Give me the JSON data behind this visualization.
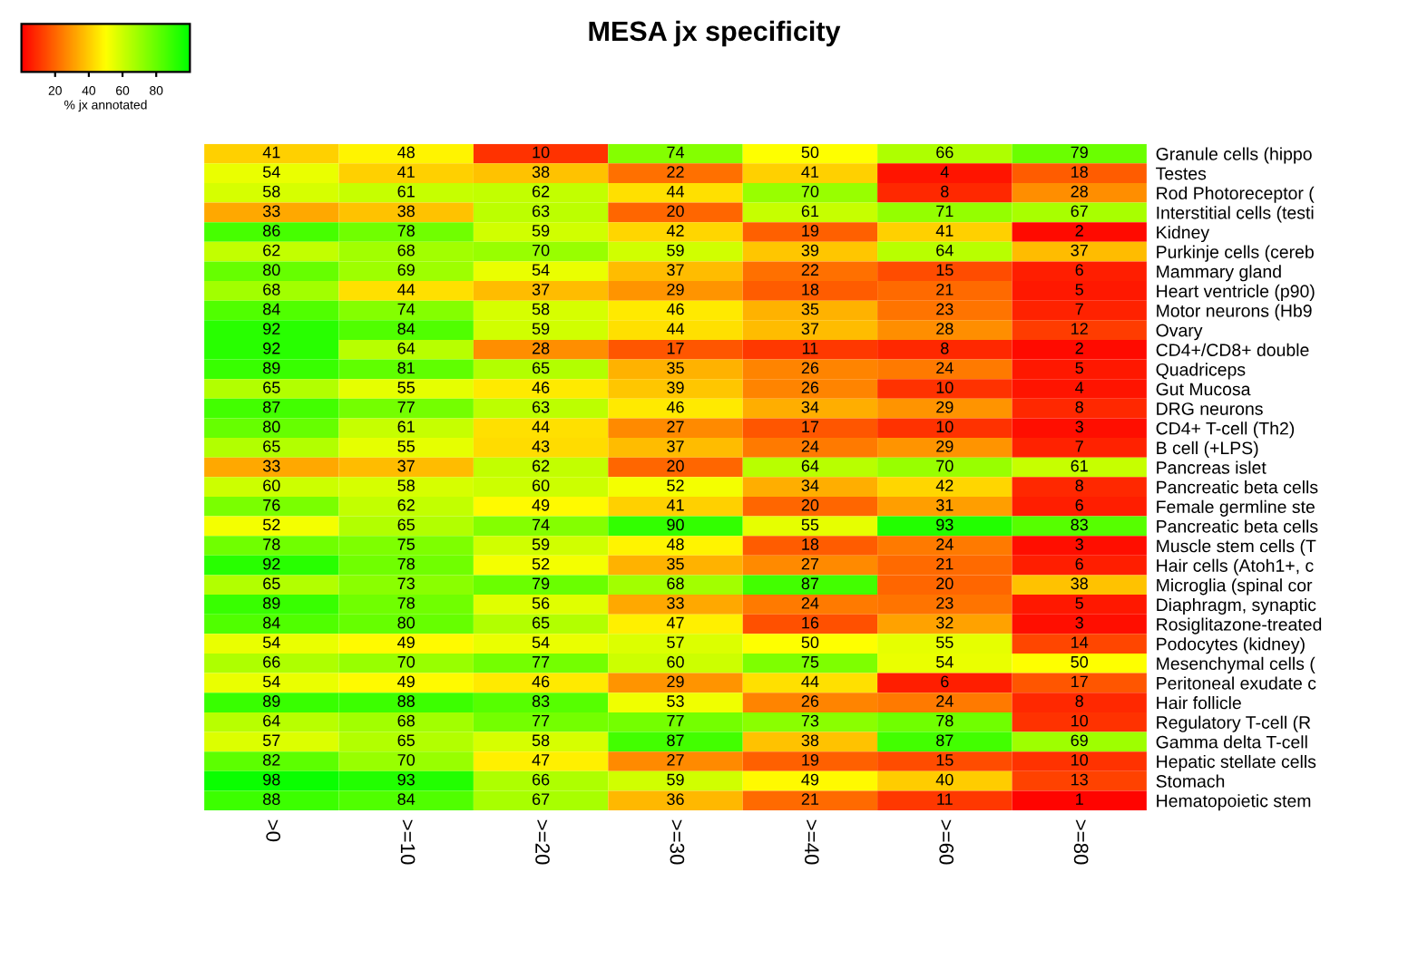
{
  "chart_data": {
    "type": "heatmap",
    "title": "MESA jx specificity",
    "clabel": "% jx annotated",
    "categories": [
      ">0",
      ">=10",
      ">=20",
      ">=30",
      ">=40",
      ">=60",
      ">=80"
    ],
    "y_categories": [
      "Granule cells (hippo",
      "Testes",
      "Rod Photoreceptor (",
      "Interstitial cells (testi",
      "Kidney",
      "Purkinje cells (cereb",
      "Mammary gland",
      "Heart ventricle (p90)",
      "Motor neurons (Hb9",
      "Ovary",
      "CD4+/CD8+ double",
      "Quadriceps",
      "Gut Mucosa",
      "DRG neurons",
      "CD4+ T-cell (Th2)",
      "B cell (+LPS)",
      "Pancreas islet",
      "Pancreatic beta cells",
      "Female germline ste",
      "Pancreatic beta cells",
      "Muscle stem cells (T",
      "Hair cells (Atoh1+, c",
      "Microglia (spinal cor",
      "Diaphragm, synaptic",
      "Rosiglitazone-treated",
      "Podocytes (kidney)",
      "Mesenchymal cells (",
      "Peritoneal exudate c",
      "Hair follicle",
      "Regulatory T-cell (R",
      "Gamma delta T-cell",
      "Hepatic stellate cells",
      "Stomach",
      "Hematopoietic stem"
    ],
    "cells": [
      [
        41,
        48,
        10,
        74,
        50,
        66,
        79
      ],
      [
        54,
        41,
        38,
        22,
        41,
        4,
        18
      ],
      [
        58,
        61,
        62,
        44,
        70,
        8,
        28
      ],
      [
        33,
        38,
        63,
        20,
        61,
        71,
        67
      ],
      [
        86,
        78,
        59,
        42,
        19,
        41,
        2
      ],
      [
        62,
        68,
        70,
        59,
        39,
        64,
        37
      ],
      [
        80,
        69,
        54,
        37,
        22,
        15,
        6
      ],
      [
        68,
        44,
        37,
        29,
        18,
        21,
        5
      ],
      [
        84,
        74,
        58,
        46,
        35,
        23,
        7
      ],
      [
        92,
        84,
        59,
        44,
        37,
        28,
        12
      ],
      [
        92,
        64,
        28,
        17,
        11,
        8,
        2
      ],
      [
        89,
        81,
        65,
        35,
        26,
        24,
        5
      ],
      [
        65,
        55,
        46,
        39,
        26,
        10,
        4
      ],
      [
        87,
        77,
        63,
        46,
        34,
        29,
        8
      ],
      [
        80,
        61,
        44,
        27,
        17,
        10,
        3
      ],
      [
        65,
        55,
        43,
        37,
        24,
        29,
        7
      ],
      [
        33,
        37,
        62,
        20,
        64,
        70,
        61
      ],
      [
        60,
        58,
        60,
        52,
        34,
        42,
        8
      ],
      [
        76,
        62,
        49,
        41,
        20,
        31,
        6
      ],
      [
        52,
        65,
        74,
        90,
        55,
        93,
        83
      ],
      [
        78,
        75,
        59,
        48,
        18,
        24,
        3
      ],
      [
        92,
        78,
        52,
        35,
        27,
        21,
        6
      ],
      [
        65,
        73,
        79,
        68,
        87,
        20,
        38
      ],
      [
        89,
        78,
        56,
        33,
        24,
        23,
        5
      ],
      [
        84,
        80,
        65,
        47,
        16,
        32,
        3
      ],
      [
        54,
        49,
        54,
        57,
        50,
        55,
        14
      ],
      [
        66,
        70,
        77,
        60,
        75,
        54,
        50
      ],
      [
        54,
        49,
        46,
        29,
        44,
        6,
        17
      ],
      [
        89,
        88,
        83,
        53,
        26,
        24,
        8
      ],
      [
        64,
        68,
        77,
        77,
        73,
        78,
        10
      ],
      [
        57,
        65,
        58,
        87,
        38,
        87,
        69
      ],
      [
        82,
        70,
        47,
        27,
        19,
        15,
        10
      ],
      [
        98,
        93,
        66,
        59,
        49,
        40,
        13
      ],
      [
        88,
        84,
        67,
        36,
        21,
        11,
        1
      ]
    ],
    "data_labels": true,
    "clim": [
      0,
      100
    ],
    "cticks": [
      20,
      40,
      60,
      80
    ]
  }
}
